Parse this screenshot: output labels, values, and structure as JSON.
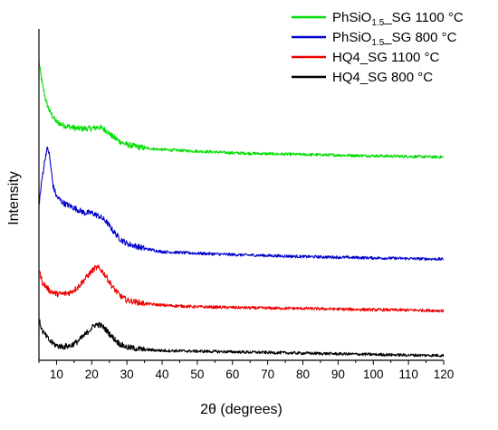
{
  "chart_data": {
    "type": "line",
    "xlabel": "2θ (degrees)",
    "ylabel": "Intensity",
    "xlim": [
      5,
      120
    ],
    "xticks": [
      10,
      20,
      30,
      40,
      50,
      60,
      70,
      80,
      90,
      100,
      110,
      120
    ],
    "ylim": [
      0,
      100
    ],
    "y_axis_ticks_labeled": false,
    "grid": false,
    "legend_position": "top-right",
    "series": [
      {
        "name_main": "PhSiO",
        "name_sub": "1.5",
        "name_rest": "_SG 1100 °C",
        "color": "#00dd00",
        "x": [
          5,
          6,
          7,
          8,
          9,
          10,
          12,
          14,
          16,
          18,
          20,
          22,
          24,
          26,
          28,
          30,
          35,
          40,
          50,
          60,
          70,
          80,
          90,
          100,
          110,
          120
        ],
        "y": [
          92,
          85,
          80,
          77,
          75,
          73.5,
          72.5,
          72,
          71.5,
          71.5,
          71.5,
          72,
          71,
          69,
          67.5,
          66.5,
          65.5,
          65,
          64.5,
          64,
          63.7,
          63.5,
          63.3,
          63.1,
          62.9,
          62.7
        ]
      },
      {
        "name_main": "PhSiO",
        "name_sub": "1.5",
        "name_rest": "_SG 800 °C",
        "color": "#0000cc",
        "x": [
          5,
          6,
          7,
          7.5,
          8,
          9,
          10,
          12,
          14,
          16,
          18,
          20,
          22,
          24,
          26,
          28,
          30,
          35,
          40,
          50,
          60,
          70,
          80,
          90,
          100,
          110,
          120
        ],
        "y": [
          48,
          57,
          64,
          65.5,
          63,
          54,
          50.5,
          48.5,
          47.5,
          46.5,
          45.5,
          45.5,
          44.5,
          43,
          40,
          37.5,
          36,
          34.5,
          33.5,
          33,
          32.6,
          32.3,
          32,
          31.8,
          31.6,
          31.4,
          31.2
        ]
      },
      {
        "name_main": "HQ4_SG 1100 °C",
        "name_sub": "",
        "name_rest": "",
        "color": "#ee0000",
        "x": [
          5,
          6,
          8,
          10,
          12,
          14,
          16,
          18,
          20,
          21,
          22,
          23,
          24,
          26,
          28,
          30,
          35,
          40,
          50,
          60,
          70,
          80,
          90,
          100,
          110,
          120
        ],
        "y": [
          28,
          24,
          21.5,
          20.5,
          20.5,
          21,
          22.5,
          25,
          27.5,
          28.5,
          28.5,
          27.5,
          26,
          22.5,
          20,
          18.5,
          17.5,
          17,
          16.5,
          16.3,
          16.1,
          16,
          15.8,
          15.6,
          15.5,
          15.3
        ]
      },
      {
        "name_main": "HQ4_SG 800 °C",
        "name_sub": "",
        "name_rest": "",
        "color": "#000000",
        "x": [
          5,
          6,
          8,
          10,
          12,
          14,
          16,
          18,
          20,
          21,
          22,
          23,
          24,
          26,
          28,
          30,
          35,
          40,
          50,
          60,
          70,
          80,
          90,
          100,
          110,
          120
        ],
        "y": [
          12.5,
          9,
          6,
          4.5,
          4.2,
          4.5,
          5.8,
          7.8,
          10,
          11,
          11,
          10.5,
          9.5,
          7,
          5,
          4,
          3.3,
          3,
          2.8,
          2.6,
          2.4,
          2.2,
          2,
          1.8,
          1.6,
          1.5
        ]
      }
    ]
  }
}
